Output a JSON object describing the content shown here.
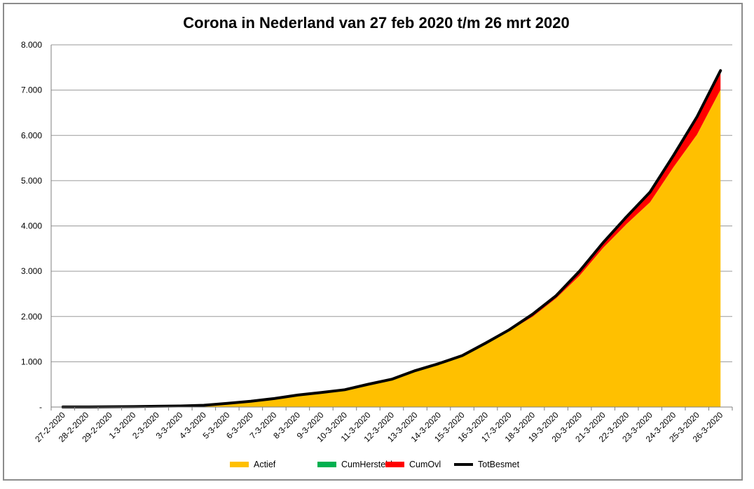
{
  "chart_data": {
    "type": "area",
    "title": "Corona in Nederland van 27 feb 2020 t/m 26 mrt 2020",
    "xlabel": "",
    "ylabel": "",
    "ylim": [
      0,
      8000
    ],
    "yticks": [
      0,
      1000,
      2000,
      3000,
      4000,
      5000,
      6000,
      7000,
      8000
    ],
    "ytick_labels": [
      "-",
      "1.000",
      "2.000",
      "3.000",
      "4.000",
      "5.000",
      "6.000",
      "7.000",
      "8.000"
    ],
    "grid": true,
    "legend_position": "bottom",
    "categories": [
      "27-2-2020",
      "28-2-2020",
      "29-2-2020",
      "1-3-2020",
      "2-3-2020",
      "3-3-2020",
      "4-3-2020",
      "5-3-2020",
      "6-3-2020",
      "7-3-2020",
      "8-3-2020",
      "9-3-2020",
      "10-3-2020",
      "11-3-2020",
      "12-3-2020",
      "13-3-2020",
      "14-3-2020",
      "15-3-2020",
      "16-3-2020",
      "17-3-2020",
      "18-3-2020",
      "19-3-2020",
      "20-3-2020",
      "21-3-2020",
      "22-3-2020",
      "23-3-2020",
      "24-3-2020",
      "25-3-2020",
      "26-3-2020"
    ],
    "series": [
      {
        "name": "Actief",
        "type": "area",
        "color": "#FFC000",
        "values": [
          1,
          2,
          6,
          10,
          18,
          24,
          38,
          82,
          128,
          188,
          265,
          321,
          382,
          503,
          614,
          804,
          959,
          1135,
          1410,
          1681,
          1996,
          2403,
          2902,
          3514,
          4042,
          4525,
          5300,
          6020,
          7010
        ]
      },
      {
        "name": "CumHersteld",
        "type": "area",
        "color": "#00B050",
        "values": [
          0,
          0,
          0,
          0,
          0,
          0,
          0,
          0,
          0,
          0,
          0,
          0,
          0,
          0,
          0,
          0,
          0,
          0,
          0,
          0,
          0,
          0,
          0,
          0,
          0,
          0,
          0,
          0,
          0
        ]
      },
      {
        "name": "CumOvl",
        "type": "area",
        "color": "#FF0000",
        "values": [
          0,
          0,
          0,
          0,
          0,
          0,
          0,
          0,
          1,
          3,
          3,
          3,
          4,
          5,
          5,
          10,
          12,
          20,
          24,
          43,
          58,
          76,
          106,
          136,
          179,
          213,
          276,
          356,
          434
        ]
      },
      {
        "name": "TotBesmet",
        "type": "line",
        "color": "#000000",
        "values": [
          1,
          2,
          6,
          10,
          18,
          24,
          38,
          82,
          128,
          188,
          265,
          321,
          382,
          503,
          614,
          804,
          959,
          1135,
          1413,
          1705,
          2051,
          2460,
          3003,
          3631,
          4204,
          4749,
          5560,
          6412,
          7431
        ]
      }
    ]
  }
}
